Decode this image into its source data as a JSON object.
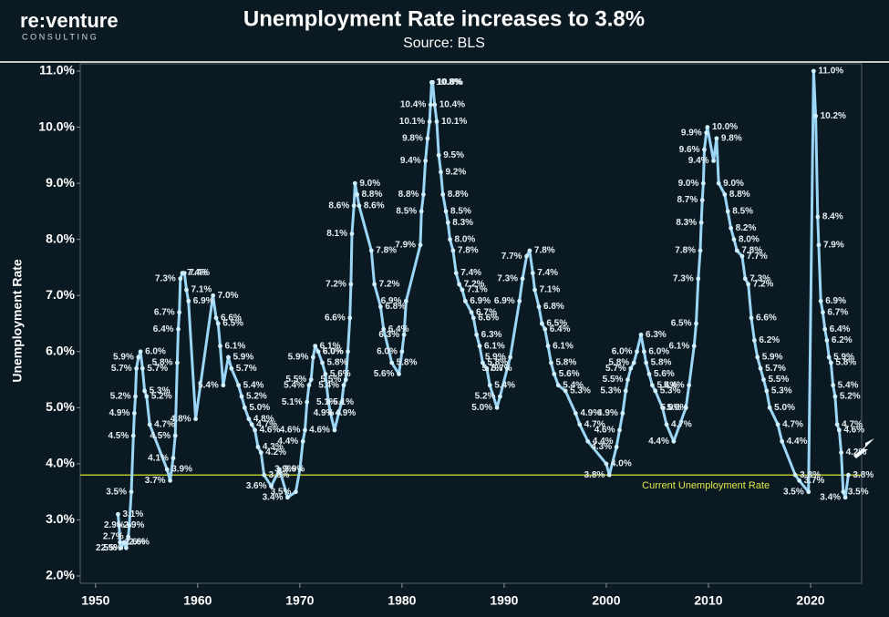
{
  "header": {
    "logo": "re:venture",
    "logo_sub": "CONSULTING"
  },
  "chart_data": {
    "type": "line",
    "title": "Unemployment Rate increases to 3.8%",
    "subtitle": "Source: BLS",
    "y_label": "Unemployment Rate",
    "color": "#9bd6f7",
    "xlim": [
      1948.5,
      2025
    ],
    "xticks": [
      1950,
      1960,
      1970,
      1980,
      1990,
      2000,
      2010,
      2020
    ],
    "ylim": [
      1.87,
      11.13
    ],
    "yticks": [
      {
        "value": 2,
        "label": "2.0%"
      },
      {
        "value": 3,
        "label": "3.0%"
      },
      {
        "value": 4,
        "label": "4.0%"
      },
      {
        "value": 5,
        "label": "5.0%"
      },
      {
        "value": 6,
        "label": "6.0%"
      },
      {
        "value": 7,
        "label": "7.0%"
      },
      {
        "value": 8,
        "label": "8.0%"
      },
      {
        "value": 9,
        "label": "9.0%"
      },
      {
        "value": 10,
        "label": "10.0%"
      },
      {
        "value": 11,
        "label": "11.0%"
      }
    ],
    "grid": false,
    "reference_line": {
      "value": 3.8,
      "label": "Current Unemployment Rate",
      "color": "#b4c42a"
    },
    "x": [
      1952.2,
      1952.3,
      1952.4,
      1952.5,
      1952.8,
      1953.0,
      1953.2,
      1953.3,
      1953.5,
      1953.7,
      1953.8,
      1953.9,
      1954.0,
      1954.2,
      1954.4,
      1954.6,
      1954.8,
      1955.0,
      1955.3,
      1957.0,
      1957.3,
      1957.6,
      1957.8,
      1958.0,
      1958.1,
      1958.2,
      1958.3,
      1958.5,
      1958.7,
      1958.9,
      1959.1,
      1959.8,
      1961.5,
      1961.8,
      1962.0,
      1962.2,
      1962.5,
      1963.0,
      1963.3,
      1964.0,
      1964.3,
      1964.6,
      1965.0,
      1965.3,
      1965.6,
      1965.9,
      1966.2,
      1966.5,
      1967.2,
      1968.0,
      1968.8,
      1969.6,
      1970.0,
      1970.3,
      1970.5,
      1970.7,
      1970.9,
      1971.1,
      1971.3,
      1971.5,
      1971.8,
      1972.2,
      1972.5,
      1972.8,
      1973.0,
      1973.4,
      1973.8,
      1974.1,
      1974.3,
      1974.5,
      1974.7,
      1974.9,
      1975.0,
      1975.1,
      1975.3,
      1975.4,
      1975.6,
      1975.8,
      1977.0,
      1977.3,
      1977.9,
      1978.2,
      1979.0,
      1979.7,
      1980.0,
      1980.2,
      1980.4,
      1981.8,
      1981.9,
      1982.1,
      1982.3,
      1982.5,
      1982.7,
      1982.8,
      1982.9,
      1983.0,
      1983.2,
      1983.4,
      1983.6,
      1983.8,
      1984.0,
      1984.3,
      1984.5,
      1984.7,
      1985.0,
      1985.3,
      1985.6,
      1985.9,
      1986.2,
      1986.8,
      1987.0,
      1987.3,
      1987.6,
      1987.9,
      1988.3,
      1988.6,
      1989.3,
      1989.6,
      1990.3,
      1990.6,
      1991.5,
      1991.8,
      1992.2,
      1992.5,
      1992.8,
      1993.0,
      1993.4,
      1993.7,
      1994.0,
      1994.3,
      1994.6,
      1994.9,
      1995.3,
      1996.0,
      1997.0,
      1997.4,
      1998.2,
      2000.0,
      2000.3,
      2001.0,
      2001.3,
      2001.6,
      2001.9,
      2002.1,
      2002.4,
      2002.7,
      2003.0,
      2003.4,
      2003.7,
      2003.9,
      2004.2,
      2004.5,
      2004.8,
      2005.5,
      2005.9,
      2006.6,
      2007.8,
      2008.1,
      2008.6,
      2008.8,
      2009.0,
      2009.2,
      2009.3,
      2009.4,
      2009.5,
      2009.6,
      2009.8,
      2009.9,
      2010.5,
      2010.8,
      2011.0,
      2011.6,
      2011.9,
      2012.2,
      2012.5,
      2012.8,
      2013.3,
      2013.6,
      2013.9,
      2014.2,
      2014.5,
      2014.8,
      2015.1,
      2015.4,
      2015.7,
      2016.0,
      2016.8,
      2017.2,
      2018.5,
      2018.9,
      2019.8,
      2020.3,
      2020.5,
      2020.7,
      2020.8,
      2021.0,
      2021.2,
      2021.4,
      2021.6,
      2021.8,
      2022.0,
      2022.2,
      2022.4,
      2022.6,
      2022.8,
      2023.0,
      2023.2,
      2023.4,
      2023.7
    ],
    "values": [
      3.1,
      2.9,
      2.6,
      2.5,
      2.6,
      2.5,
      2.7,
      2.9,
      3.5,
      4.5,
      4.9,
      5.2,
      5.7,
      5.9,
      6.0,
      5.7,
      5.3,
      5.2,
      4.7,
      3.9,
      3.7,
      4.1,
      4.5,
      5.8,
      6.4,
      6.7,
      7.3,
      7.4,
      7.4,
      7.1,
      6.9,
      4.8,
      7.0,
      6.6,
      6.5,
      6.1,
      5.4,
      5.9,
      5.7,
      5.4,
      5.2,
      5.0,
      4.8,
      4.7,
      4.6,
      4.3,
      4.2,
      3.8,
      3.6,
      3.9,
      3.4,
      3.5,
      3.9,
      4.4,
      4.6,
      5.1,
      5.4,
      5.5,
      5.9,
      6.1,
      6.0,
      5.8,
      5.6,
      5.1,
      4.9,
      4.6,
      4.9,
      5.1,
      5.4,
      5.5,
      6.0,
      6.6,
      7.2,
      8.1,
      8.6,
      9.0,
      8.8,
      8.6,
      7.8,
      7.2,
      6.8,
      6.4,
      5.8,
      5.6,
      6.0,
      6.3,
      6.9,
      7.9,
      8.5,
      8.8,
      9.4,
      9.8,
      10.1,
      10.4,
      10.8,
      10.8,
      10.4,
      10.1,
      9.5,
      9.2,
      8.8,
      8.5,
      8.3,
      8.0,
      7.8,
      7.4,
      7.2,
      7.1,
      6.9,
      6.7,
      6.6,
      6.3,
      6.1,
      5.8,
      5.7,
      5.4,
      5.0,
      5.2,
      5.7,
      5.9,
      6.9,
      7.3,
      7.7,
      7.8,
      7.4,
      7.1,
      6.8,
      6.5,
      6.4,
      6.1,
      5.8,
      5.6,
      5.4,
      5.3,
      4.9,
      4.7,
      4.4,
      4.0,
      3.8,
      4.3,
      4.6,
      4.9,
      5.3,
      5.5,
      5.7,
      5.8,
      6.0,
      6.3,
      6.0,
      5.8,
      5.6,
      5.4,
      5.3,
      5.0,
      4.7,
      4.4,
      5.0,
      5.4,
      6.1,
      6.5,
      7.3,
      7.8,
      8.3,
      8.7,
      9.0,
      9.6,
      9.9,
      10.0,
      9.4,
      9.8,
      9.0,
      8.8,
      8.5,
      8.2,
      8.0,
      7.8,
      7.7,
      7.3,
      7.2,
      6.6,
      6.2,
      5.9,
      5.7,
      5.5,
      5.3,
      5.0,
      4.7,
      4.4,
      3.8,
      3.7,
      3.5,
      11.0,
      10.2,
      8.4,
      7.9,
      6.9,
      6.7,
      6.4,
      6.2,
      5.9,
      5.8,
      5.4,
      5.2,
      4.7,
      4.6,
      4.2,
      3.5,
      3.4,
      3.8
    ],
    "value_labels": [
      "3.1%",
      "2.9%",
      "2.6%",
      "2.5%",
      "2.6%",
      "2.5%",
      "2.7%",
      "2.9%",
      "3.5%",
      "4.5%",
      "4.9%",
      "5.2%",
      "5.7%",
      "5.9%",
      "6.0%",
      "5.7%",
      "5.3%",
      "5.2%",
      "4.7%",
      "3.9%",
      "3.7%",
      "4.1%",
      "4.5%",
      "5.8%",
      "6.4%",
      "6.7%",
      "7.3%",
      "7.4%",
      "7.4%",
      "7.1%",
      "6.9%",
      "4.8%",
      "7.0%",
      "6.6%",
      "6.5%",
      "6.1%",
      "5.4%",
      "5.9%",
      "5.7%",
      "5.4%",
      "5.2%",
      "5.0%",
      "4.8%",
      "4.7%",
      "4.6%",
      "4.3%",
      "4.2%",
      "3.8%",
      "3.6%",
      "3.9%",
      "3.4%",
      "3.5%",
      "3.9%",
      "4.4%",
      "4.6%",
      "5.1%",
      "5.4%",
      "5.5%",
      "5.9%",
      "6.1%",
      "6.0%",
      "5.8%",
      "5.6%",
      "5.1%",
      "4.9%",
      "4.6%",
      "4.9%",
      "5.1%",
      "5.4%",
      "5.5%",
      "6.0%",
      "6.6%",
      "7.2%",
      "8.1%",
      "8.6%",
      "9.0%",
      "8.8%",
      "8.6%",
      "7.8%",
      "7.2%",
      "6.8%",
      "6.4%",
      "5.8%",
      "5.6%",
      "6.0%",
      "6.3%",
      "6.9%",
      "7.9%",
      "8.5%",
      "8.8%",
      "9.4%",
      "9.8%",
      "10.1%",
      "10.4%",
      "10.8%",
      "10.8%",
      "10.4%",
      "10.1%",
      "9.5%",
      "9.2%",
      "8.8%",
      "8.5%",
      "8.3%",
      "8.0%",
      "7.8%",
      "7.4%",
      "7.2%",
      "7.1%",
      "6.9%",
      "6.7%",
      "6.6%",
      "6.3%",
      "6.1%",
      "5.8%",
      "5.7%",
      "5.4%",
      "5.0%",
      "5.2%",
      "5.7%",
      "5.9%",
      "6.9%",
      "7.3%",
      "7.7%",
      "7.8%",
      "7.4%",
      "7.1%",
      "6.8%",
      "6.5%",
      "6.4%",
      "6.1%",
      "5.8%",
      "5.6%",
      "5.4%",
      "5.3%",
      "4.9%",
      "4.7%",
      "4.4%",
      "4.0%",
      "3.8%",
      "4.3%",
      "4.6%",
      "4.9%",
      "5.3%",
      "5.5%",
      "5.7%",
      "5.8%",
      "6.0%",
      "6.3%",
      "6.0%",
      "5.8%",
      "5.6%",
      "5.4%",
      "5.3%",
      "5.0%",
      "4.7%",
      "4.4%",
      "5.0%",
      "5.4%",
      "6.1%",
      "6.5%",
      "7.3%",
      "7.8%",
      "8.3%",
      "8.7%",
      "9.0%",
      "9.6%",
      "9.9%",
      "10.0%",
      "9.4%",
      "9.8%",
      "9.0%",
      "8.8%",
      "8.5%",
      "8.2%",
      "8.0%",
      "7.8%",
      "7.7%",
      "7.3%",
      "7.2%",
      "6.6%",
      "6.2%",
      "5.9%",
      "5.7%",
      "5.5%",
      "5.3%",
      "5.0%",
      "4.7%",
      "4.4%",
      "3.8%",
      "3.7%",
      "3.5%",
      "11.0%",
      "10.2%",
      "8.4%",
      "7.9%",
      "6.9%",
      "6.7%",
      "6.4%",
      "6.2%",
      "5.9%",
      "5.8%",
      "5.4%",
      "5.2%",
      "4.7%",
      "4.6%",
      "4.2%",
      "3.5%",
      "3.4%",
      "3.8%"
    ]
  }
}
